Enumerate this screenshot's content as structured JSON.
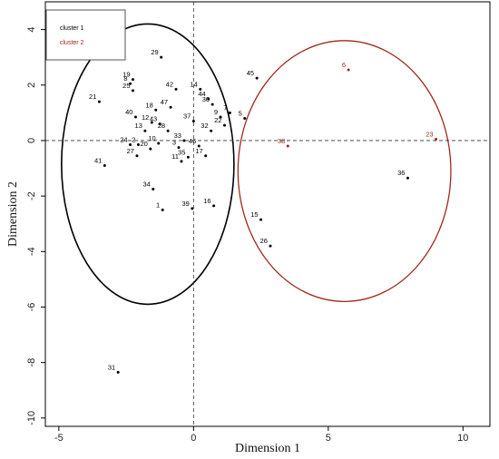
{
  "chart_data": {
    "type": "scatter",
    "title": "",
    "xlabel": "Dimension 1",
    "ylabel": "Dimension 2",
    "xlim": [
      -5.5,
      11
    ],
    "ylim": [
      -10.3,
      5
    ],
    "xticks": [
      -5,
      0,
      5,
      10
    ],
    "yticks": [
      -10,
      -8,
      -6,
      -4,
      -2,
      0,
      2,
      4
    ],
    "reference_lines": {
      "x": 0,
      "y": 0
    },
    "legend": {
      "placement": "top-left",
      "entries": [
        {
          "name": "cluster 1",
          "color": "#000000"
        },
        {
          "name": "cluster 2",
          "color": "#a0281c"
        }
      ]
    },
    "series": [
      {
        "name": "cluster 1",
        "color": "#000000",
        "ellipse": {
          "cx": -1.7,
          "cy": -0.85,
          "rx": 3.2,
          "ry": 5.05
        },
        "points": [
          {
            "label": "1",
            "x": -1.15,
            "y": -2.5
          },
          {
            "label": "2",
            "x": -2.05,
            "y": -0.15
          },
          {
            "label": "3",
            "x": -0.55,
            "y": -0.25
          },
          {
            "label": "5",
            "x": 1.9,
            "y": 0.8
          },
          {
            "label": "7",
            "x": 1.35,
            "y": 1.0
          },
          {
            "label": "8",
            "x": -2.35,
            "y": 2.05
          },
          {
            "label": "9",
            "x": 1.0,
            "y": 0.85
          },
          {
            "label": "10",
            "x": -1.3,
            "y": -0.1
          },
          {
            "label": "11",
            "x": -0.45,
            "y": -0.75
          },
          {
            "label": "12",
            "x": -1.55,
            "y": 0.65
          },
          {
            "label": "13",
            "x": -1.8,
            "y": 0.35
          },
          {
            "label": "14",
            "x": 0.25,
            "y": 1.85
          },
          {
            "label": "15",
            "x": 2.5,
            "y": -2.85
          },
          {
            "label": "16",
            "x": 0.75,
            "y": -2.35
          },
          {
            "label": "17",
            "x": 0.45,
            "y": -0.55
          },
          {
            "label": "18",
            "x": -1.4,
            "y": 1.1
          },
          {
            "label": "19",
            "x": -2.25,
            "y": 2.2
          },
          {
            "label": "20",
            "x": -1.6,
            "y": -0.3
          },
          {
            "label": "21",
            "x": -3.5,
            "y": 1.4
          },
          {
            "label": "22",
            "x": 1.15,
            "y": 0.55
          },
          {
            "label": "24",
            "x": -2.35,
            "y": -0.15
          },
          {
            "label": "25",
            "x": -2.25,
            "y": 1.8
          },
          {
            "label": "26",
            "x": 2.85,
            "y": -3.8
          },
          {
            "label": "27",
            "x": -2.1,
            "y": -0.55
          },
          {
            "label": "28",
            "x": -0.95,
            "y": 0.35
          },
          {
            "label": "29",
            "x": -1.2,
            "y": 3.0
          },
          {
            "label": "30",
            "x": 0.7,
            "y": 1.3
          },
          {
            "label": "31",
            "x": -2.8,
            "y": -8.35
          },
          {
            "label": "32",
            "x": 0.65,
            "y": 0.35
          },
          {
            "label": "33",
            "x": -0.35,
            "y": 0.0
          },
          {
            "label": "34",
            "x": -1.5,
            "y": -1.75
          },
          {
            "label": "35",
            "x": -0.2,
            "y": -0.6
          },
          {
            "label": "36",
            "x": 7.95,
            "y": -1.35
          },
          {
            "label": "37",
            "x": 0.0,
            "y": 0.7
          },
          {
            "label": "39",
            "x": -0.05,
            "y": -2.45
          },
          {
            "label": "40",
            "x": -2.15,
            "y": 0.85
          },
          {
            "label": "41",
            "x": -3.3,
            "y": -0.9
          },
          {
            "label": "42",
            "x": -0.65,
            "y": 1.85
          },
          {
            "label": "43",
            "x": -1.25,
            "y": 0.6
          },
          {
            "label": "44",
            "x": 0.55,
            "y": 1.5
          },
          {
            "label": "45",
            "x": 2.35,
            "y": 2.25
          },
          {
            "label": "46",
            "x": 0.2,
            "y": -0.2
          },
          {
            "label": "47",
            "x": -0.85,
            "y": 1.2
          }
        ]
      },
      {
        "name": "cluster 2",
        "color": "#a0281c",
        "ellipse": {
          "cx": 5.6,
          "cy": -1.1,
          "rx": 3.95,
          "ry": 4.7
        },
        "points": [
          {
            "label": "6",
            "x": 5.75,
            "y": 2.55
          },
          {
            "label": "23",
            "x": 9.0,
            "y": 0.05
          },
          {
            "label": "38",
            "x": 3.5,
            "y": -0.2
          }
        ]
      }
    ]
  }
}
